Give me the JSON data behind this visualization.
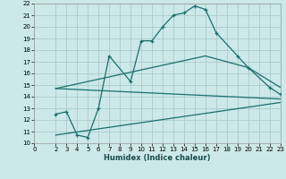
{
  "xlabel": "Humidex (Indice chaleur)",
  "bg_color": "#cce8e8",
  "grid_color": "#aacccc",
  "line_color": "#1a6e6e",
  "xlim": [
    0,
    23
  ],
  "ylim": [
    10,
    22
  ],
  "xticks": [
    0,
    2,
    3,
    4,
    5,
    6,
    7,
    8,
    9,
    10,
    11,
    12,
    13,
    14,
    15,
    16,
    17,
    18,
    19,
    20,
    21,
    22,
    23
  ],
  "yticks": [
    10,
    11,
    12,
    13,
    14,
    15,
    16,
    17,
    18,
    19,
    20,
    21,
    22
  ],
  "line1_x": [
    2,
    3,
    4,
    5,
    6,
    7,
    9,
    10,
    11,
    12,
    13,
    14,
    15,
    16,
    17,
    19,
    20,
    22,
    23
  ],
  "line1_y": [
    12.5,
    12.7,
    10.7,
    10.5,
    13.0,
    17.5,
    15.3,
    18.8,
    18.8,
    20.0,
    21.0,
    21.2,
    21.8,
    21.5,
    19.5,
    17.5,
    16.5,
    14.8,
    14.2
  ],
  "line2_x": [
    2,
    16,
    20,
    23
  ],
  "line2_y": [
    14.7,
    17.5,
    16.5,
    14.8
  ],
  "line3_x": [
    2,
    23
  ],
  "line3_y": [
    14.7,
    13.8
  ],
  "line4_x": [
    2,
    23
  ],
  "line4_y": [
    10.7,
    13.5
  ]
}
